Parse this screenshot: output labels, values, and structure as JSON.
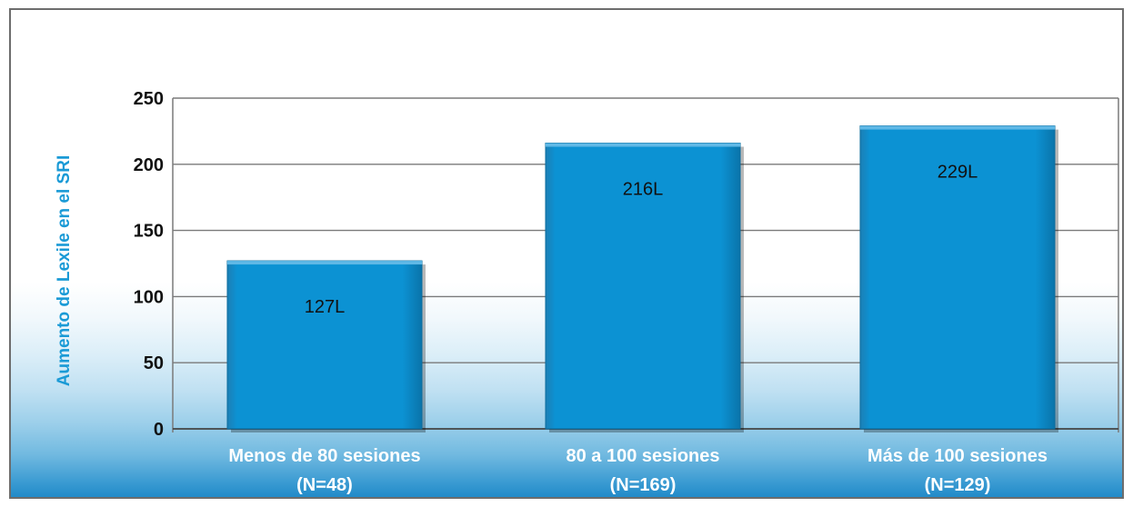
{
  "chart_data": {
    "type": "bar",
    "title": "",
    "xlabel": "",
    "ylabel": "Aumento de Lexile en el SRI",
    "ylim": [
      0,
      250
    ],
    "yticks": [
      0,
      50,
      100,
      150,
      200,
      250
    ],
    "grid": true,
    "categories": [
      [
        "Menos de 80 sesiones",
        "(N=48)"
      ],
      [
        "80 a 100 sesiones",
        "(N=169)"
      ],
      [
        "Más de 100 sesiones",
        "(N=129)"
      ]
    ],
    "values": [
      127,
      216,
      229
    ],
    "data_labels": [
      "127L",
      "216L",
      "229L"
    ],
    "bar_color": "#0a8fd0",
    "ylabel_color": "#1a9ad6"
  }
}
